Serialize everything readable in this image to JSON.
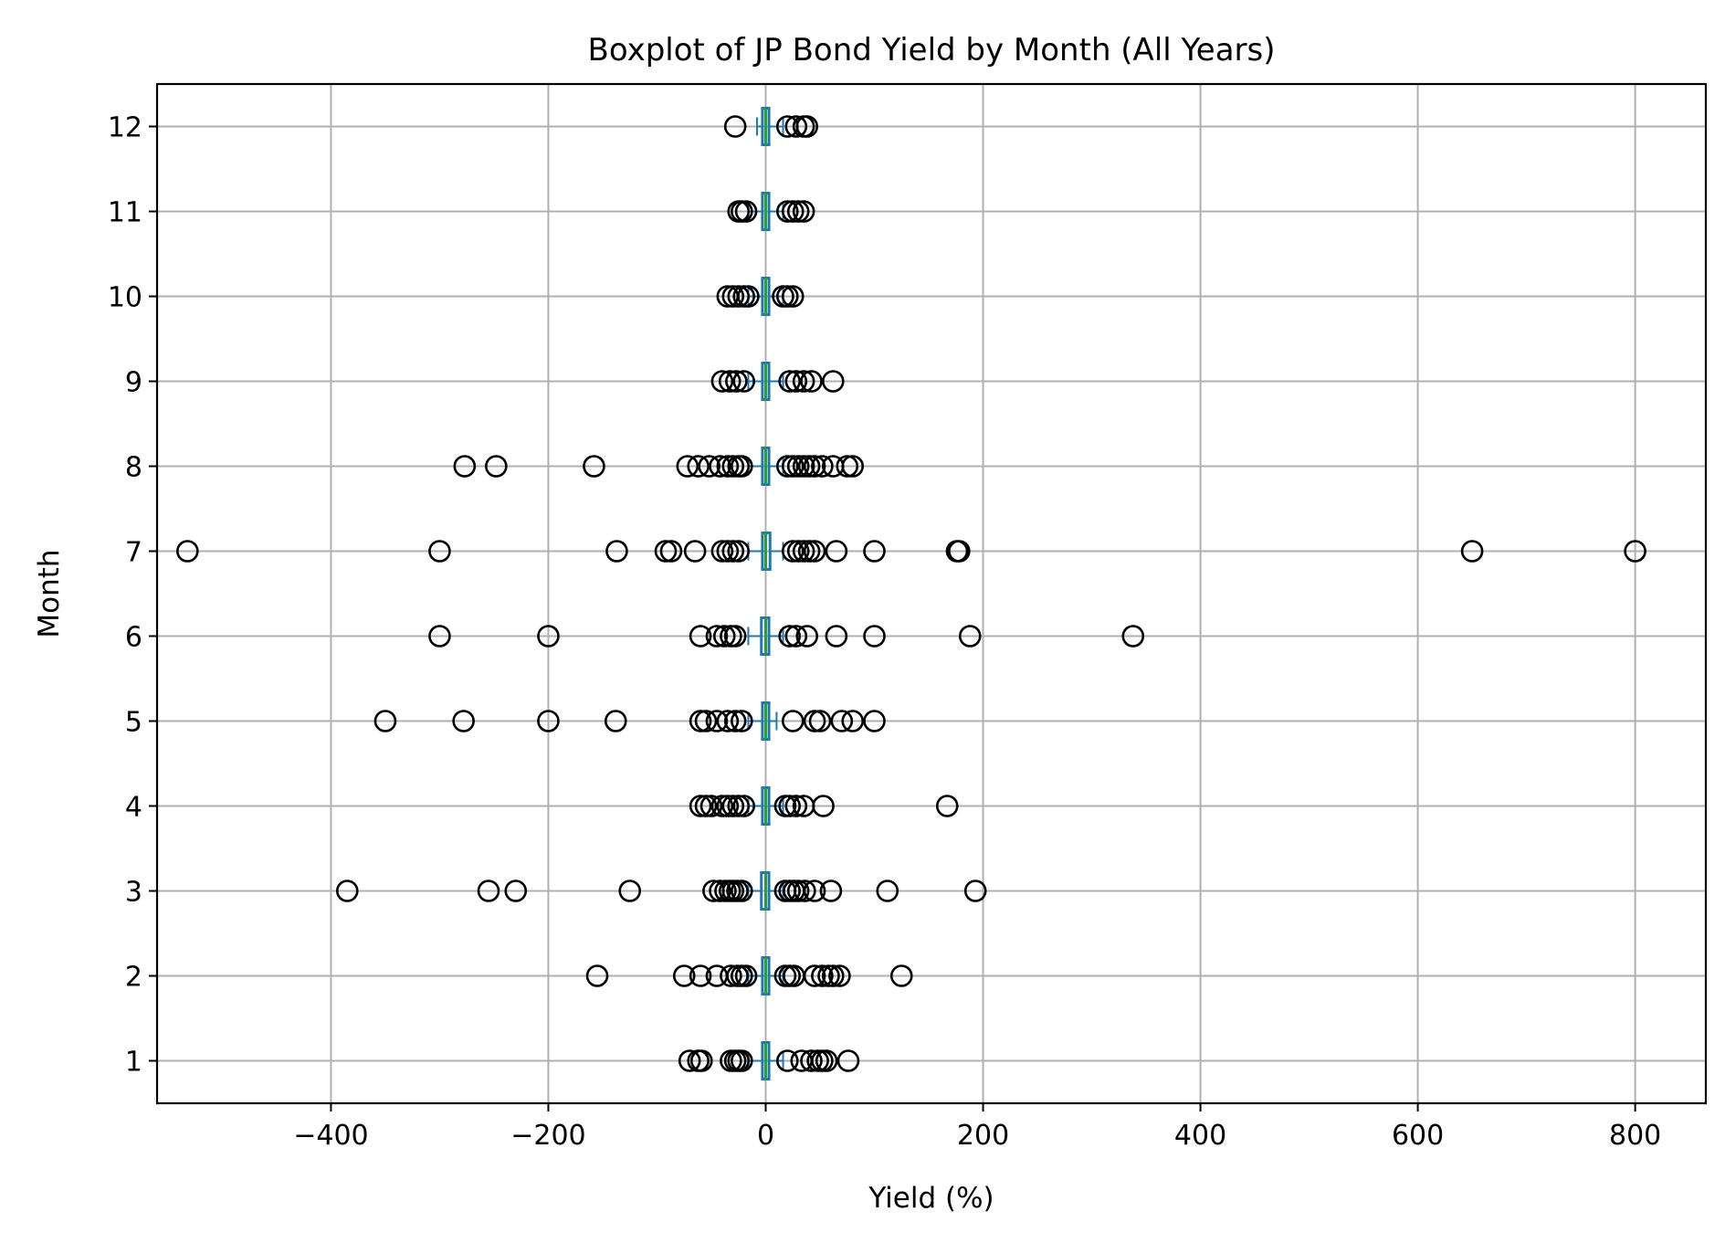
{
  "chart_data": {
    "type": "boxplot",
    "orientation": "horizontal",
    "title": "Boxplot of JP Bond Yield by Month (All Years)",
    "xlabel": "Yield (%)",
    "ylabel": "Month",
    "xlim": [
      -560,
      865
    ],
    "x_ticks": [
      -400,
      -200,
      0,
      200,
      400,
      600,
      800
    ],
    "x_tick_labels": [
      "−400",
      "−200",
      "0",
      "200",
      "400",
      "600",
      "800"
    ],
    "grid": true,
    "colors": {
      "box": "#1f77b4",
      "median": "#2ca02c",
      "flier": "#000000",
      "grid": "#b0b0b0"
    },
    "categories": [
      "1",
      "2",
      "3",
      "4",
      "5",
      "6",
      "7",
      "8",
      "9",
      "10",
      "11",
      "12"
    ],
    "boxes": [
      {
        "month": "1",
        "q1": -3,
        "median": 0,
        "q3": 3,
        "whisker_low": -16,
        "whisker_high": 16,
        "outliers": [
          -70,
          -62,
          -59,
          -32,
          -28,
          -25,
          -22,
          20,
          33,
          42,
          48,
          52,
          56,
          76
        ]
      },
      {
        "month": "2",
        "q1": -3,
        "median": 0,
        "q3": 3,
        "whisker_low": -16,
        "whisker_high": 16,
        "outliers": [
          -155,
          -75,
          -60,
          -45,
          -32,
          -26,
          -22,
          -18,
          18,
          22,
          26,
          45,
          52,
          58,
          62,
          68,
          125
        ]
      },
      {
        "month": "3",
        "q1": -4,
        "median": 0,
        "q3": 3,
        "whisker_low": -16,
        "whisker_high": 16,
        "outliers": [
          -385,
          -255,
          -230,
          -125,
          -48,
          -42,
          -37,
          -33,
          -30,
          -26,
          -22,
          18,
          22,
          26,
          30,
          36,
          45,
          60,
          112,
          193
        ]
      },
      {
        "month": "4",
        "q1": -3,
        "median": 0,
        "q3": 3,
        "whisker_low": -16,
        "whisker_high": 16,
        "outliers": [
          -60,
          -55,
          -50,
          -40,
          -35,
          -30,
          -25,
          -20,
          18,
          22,
          28,
          35,
          53,
          167
        ]
      },
      {
        "month": "5",
        "q1": -3,
        "median": 0,
        "q3": 3,
        "whisker_low": -16,
        "whisker_high": 10,
        "outliers": [
          -350,
          -278,
          -200,
          -138,
          -60,
          -55,
          -45,
          -35,
          -28,
          -22,
          25,
          45,
          50,
          70,
          80,
          100
        ]
      },
      {
        "month": "6",
        "q1": -4,
        "median": 0,
        "q3": 3,
        "whisker_low": -16,
        "whisker_high": 16,
        "outliers": [
          -300,
          -200,
          -60,
          -45,
          -38,
          -32,
          -28,
          22,
          28,
          38,
          65,
          100,
          188,
          338
        ]
      },
      {
        "month": "7",
        "q1": -3,
        "median": 0,
        "q3": 4,
        "whisker_low": -16,
        "whisker_high": 16,
        "outliers": [
          -532,
          -300,
          -137,
          -92,
          -87,
          -65,
          -40,
          -35,
          -30,
          -25,
          25,
          30,
          35,
          40,
          45,
          65,
          100,
          176,
          178,
          650,
          800
        ]
      },
      {
        "month": "8",
        "q1": -3,
        "median": 0,
        "q3": 3,
        "whisker_low": -16,
        "whisker_high": 16,
        "outliers": [
          -277,
          -248,
          -158,
          -72,
          -62,
          -52,
          -42,
          -35,
          -30,
          -25,
          -22,
          20,
          25,
          30,
          35,
          40,
          45,
          52,
          62,
          75,
          80
        ]
      },
      {
        "month": "9",
        "q1": -3,
        "median": 0,
        "q3": 3,
        "whisker_low": -16,
        "whisker_high": 16,
        "outliers": [
          -40,
          -33,
          -27,
          -20,
          22,
          28,
          35,
          42,
          62
        ]
      },
      {
        "month": "10",
        "q1": -3,
        "median": 0,
        "q3": 3,
        "whisker_low": -16,
        "whisker_high": 16,
        "outliers": [
          -35,
          -30,
          -25,
          -20,
          -16,
          16,
          20,
          25
        ]
      },
      {
        "month": "11",
        "q1": -3,
        "median": 0,
        "q3": 3,
        "whisker_low": -16,
        "whisker_high": 16,
        "outliers": [
          -25,
          -22,
          -18,
          20,
          25,
          30,
          35
        ]
      },
      {
        "month": "12",
        "q1": -3,
        "median": 0,
        "q3": 3,
        "whisker_low": -8,
        "whisker_high": 16,
        "outliers": [
          -28,
          20,
          28,
          35,
          38
        ]
      }
    ]
  }
}
